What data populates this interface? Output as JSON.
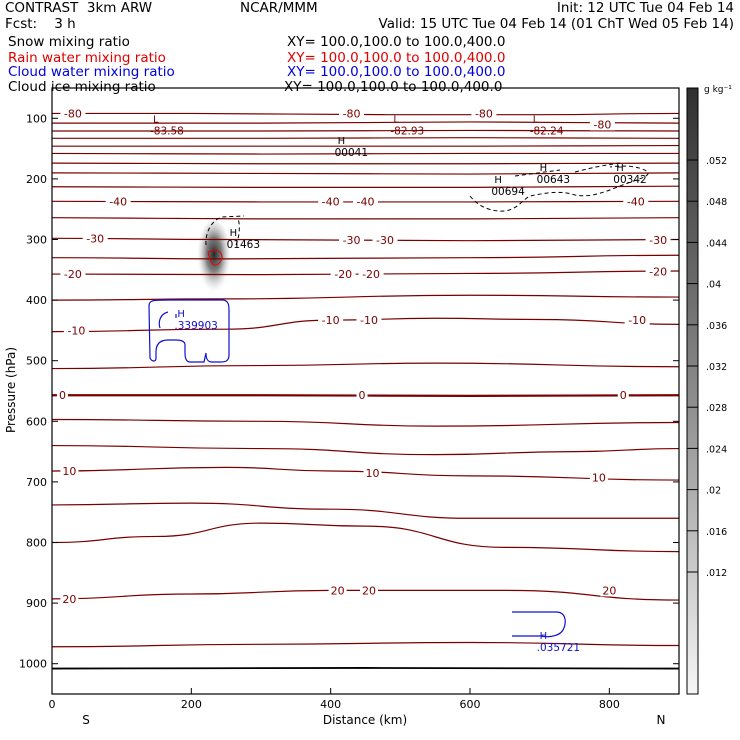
{
  "header": {
    "title_left": "CONTRAST  3km ARW",
    "title_center": "NCAR/MMM",
    "init": "Init: 12 UTC Tue 04 Feb 14",
    "fcst": "Fcst:    3 h",
    "valid": "Valid: 15 UTC Tue 04 Feb 14 (01 ChT Wed 05 Feb 14)",
    "fields": [
      {
        "name": "Snow mixing ratio",
        "xy": "XY= 100.0,100.0 to 100.0,400.0",
        "color": "#000000"
      },
      {
        "name": "Rain water mixing ratio",
        "xy": "XY= 100.0,100.0 to 100.0,400.0",
        "color": "#e00000"
      },
      {
        "name": "Cloud water mixing ratio",
        "xy": "XY= 100.0,100.0 to 100.0,400.0",
        "color": "#0000e0"
      },
      {
        "name": "Cloud ice mixing ratio",
        "xy": "XY= 100.0,100.0 to 100.0,400.0",
        "color": "#000000"
      }
    ]
  },
  "colors": {
    "temperature": "#7a0000",
    "cloud_water": "#1010d0",
    "frame": "#000000"
  },
  "chart_data": {
    "type": "cross-section contour",
    "xlabel": "Distance (km)",
    "ylabel": "Pressure (hPa)",
    "xlim": [
      0,
      900
    ],
    "ylim": [
      1050,
      50
    ],
    "x_ticks": [
      0,
      200,
      400,
      600,
      800
    ],
    "y_ticks": [
      100,
      200,
      300,
      400,
      500,
      600,
      700,
      800,
      900,
      1000
    ],
    "x_end_labels": {
      "left": "S",
      "right": "N"
    },
    "colorbar": {
      "unit": "g kg⁻¹",
      "ticks": [
        ".052",
        ".048",
        ".044",
        ".04",
        ".036",
        ".032",
        ".028",
        ".024",
        ".02",
        ".016",
        ".012"
      ]
    },
    "temperature_contour_labels": [
      {
        "text": "-80",
        "x": 30,
        "p": 92
      },
      {
        "text": "-80",
        "x": 430,
        "p": 92
      },
      {
        "text": "-80",
        "x": 620,
        "p": 92
      },
      {
        "text": "-80",
        "x": 790,
        "p": 110
      },
      {
        "text": "-40",
        "x": 95,
        "p": 237
      },
      {
        "text": "-40",
        "x": 400,
        "p": 237
      },
      {
        "text": "-40",
        "x": 450,
        "p": 237
      },
      {
        "text": "-40",
        "x": 838,
        "p": 237
      },
      {
        "text": "-30",
        "x": 62,
        "p": 298
      },
      {
        "text": "-30",
        "x": 430,
        "p": 301
      },
      {
        "text": "-30",
        "x": 478,
        "p": 301
      },
      {
        "text": "-30",
        "x": 870,
        "p": 301
      },
      {
        "text": "-20",
        "x": 30,
        "p": 357
      },
      {
        "text": "-20",
        "x": 418,
        "p": 357
      },
      {
        "text": "-20",
        "x": 458,
        "p": 357
      },
      {
        "text": "-20",
        "x": 870,
        "p": 353
      },
      {
        "text": "-10",
        "x": 35,
        "p": 450
      },
      {
        "text": "-10",
        "x": 400,
        "p": 433
      },
      {
        "text": "-10",
        "x": 455,
        "p": 433
      },
      {
        "text": "-10",
        "x": 840,
        "p": 433
      },
      {
        "text": "0",
        "x": 15,
        "p": 557
      },
      {
        "text": "0",
        "x": 445,
        "p": 557
      },
      {
        "text": "0",
        "x": 820,
        "p": 557
      },
      {
        "text": "10",
        "x": 25,
        "p": 682
      },
      {
        "text": "10",
        "x": 460,
        "p": 685
      },
      {
        "text": "10",
        "x": 785,
        "p": 693
      },
      {
        "text": "20",
        "x": 25,
        "p": 893
      },
      {
        "text": "20",
        "x": 410,
        "p": 879
      },
      {
        "text": "20",
        "x": 455,
        "p": 879
      },
      {
        "text": "20",
        "x": 800,
        "p": 879
      }
    ],
    "extrema": [
      {
        "type": "L",
        "value": "-83.58",
        "x": 145,
        "p": 112,
        "color": "#7a0000"
      },
      {
        "type": "L",
        "value": "-82.93",
        "x": 490,
        "p": 112,
        "color": "#7a0000"
      },
      {
        "type": "L",
        "value": "-82.24",
        "x": 690,
        "p": 112,
        "color": "#7a0000"
      },
      {
        "type": "H",
        "value": "00041",
        "x": 410,
        "p": 147,
        "color": "#000000"
      },
      {
        "type": "H",
        "value": "00643",
        "x": 700,
        "p": 192,
        "color": "#000000"
      },
      {
        "type": "H",
        "value": "00342",
        "x": 810,
        "p": 192,
        "color": "#000000"
      },
      {
        "type": "H",
        "value": "00694",
        "x": 635,
        "p": 212,
        "color": "#000000"
      },
      {
        "type": "H",
        "value": "01463",
        "x": 255,
        "p": 299,
        "color": "#000000"
      },
      {
        "type": "H",
        "value": ".339903",
        "x": 180,
        "p": 433,
        "color": "#1010d0"
      },
      {
        "type": "H",
        "value": ".035721",
        "x": 700,
        "p": 964,
        "color": "#1010d0"
      }
    ],
    "shaded_max": {
      "field": "Snow mixing ratio",
      "x": 232,
      "p": 315,
      "max": 0.052
    }
  }
}
